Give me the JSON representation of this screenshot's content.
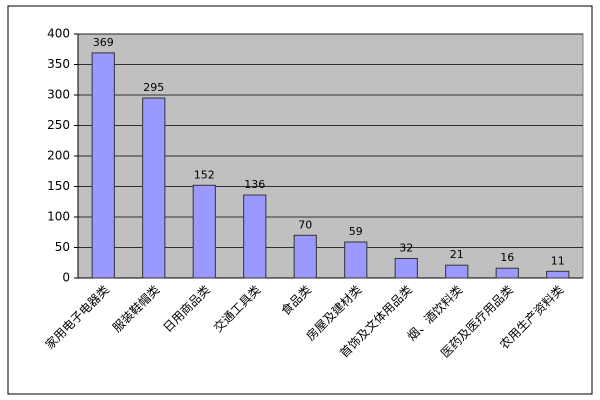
{
  "chart_data": {
    "type": "bar",
    "categories": [
      "家用电子电器类",
      "服装鞋帽类",
      "日用商品类",
      "交通工具类",
      "食品类",
      "房屋及建材类",
      "首饰及文体用品类",
      "烟、酒饮料类",
      "医药及医疗用品类",
      "农用生产资料类"
    ],
    "values": [
      369,
      295,
      152,
      136,
      70,
      59,
      32,
      21,
      16,
      11
    ],
    "color": "#9999ff",
    "ylim": [
      0,
      400
    ],
    "yticks": [
      0,
      50,
      100,
      150,
      200,
      250,
      300,
      350,
      400
    ],
    "grid": true
  }
}
